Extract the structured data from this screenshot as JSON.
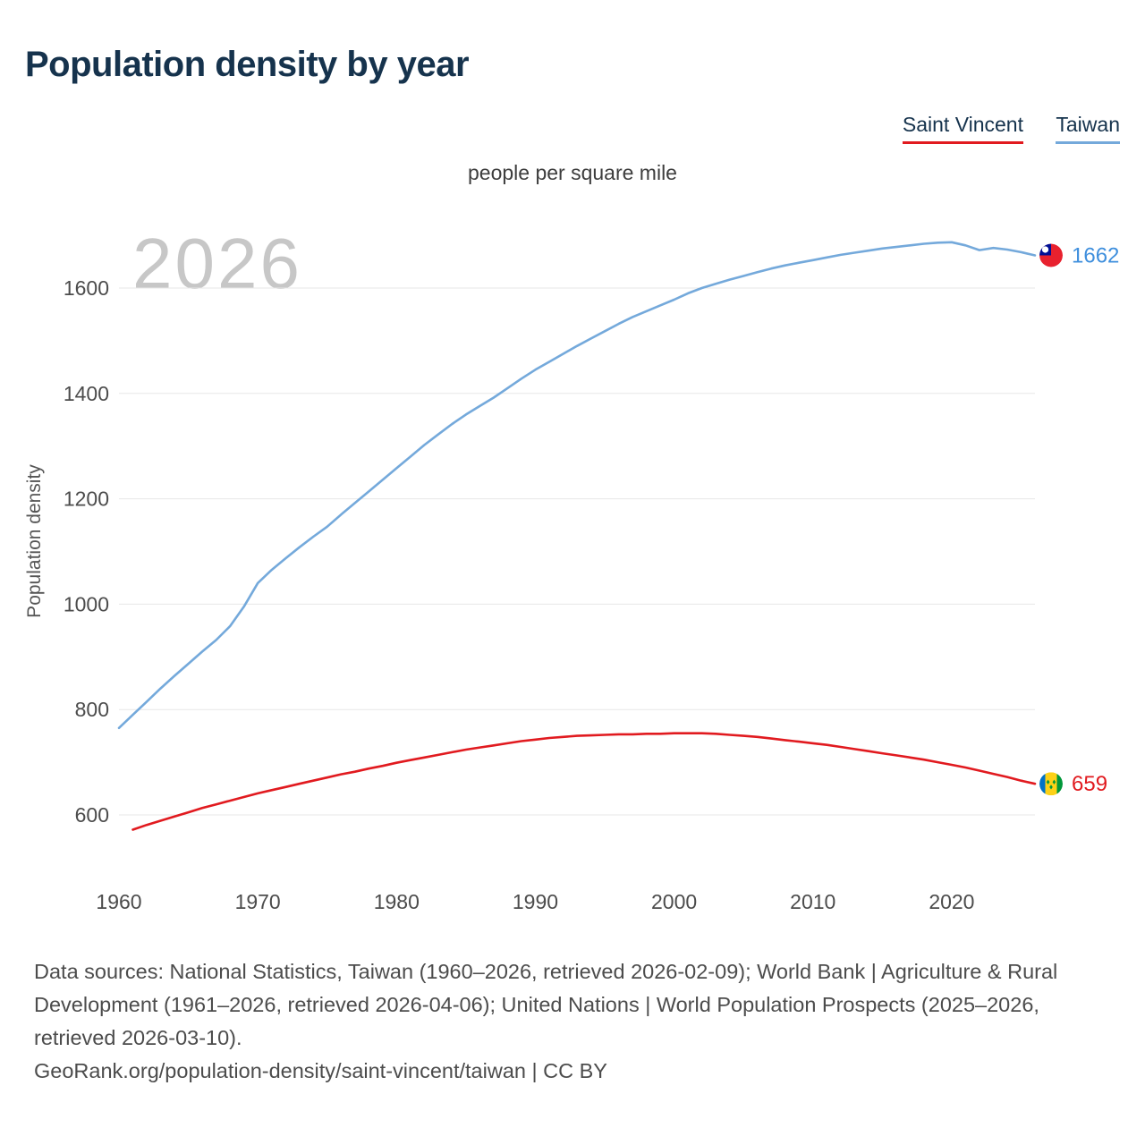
{
  "page": {
    "title": "Population density by year",
    "subtitle": "people per square mile",
    "legend": {
      "saint_vincent": "Saint Vincent",
      "taiwan": "Taiwan"
    },
    "footer": {
      "sources": "Data sources: National Statistics, Taiwan (1960–2026, retrieved 2026-02-09); World Bank | Agriculture & Rural Development (1961–2026, retrieved 2026-04-06); United Nations | World Population Prospects (2025–2026, retrieved 2026-03-10).",
      "link": "GeoRank.org/population-density/saint-vincent/taiwan | CC BY"
    }
  },
  "chart_data": {
    "type": "line",
    "title": "Population density by year",
    "unit_label": "people per square mile",
    "ylabel": "Population density",
    "watermark": "2026",
    "xticks": [
      1960,
      1970,
      1980,
      1990,
      2000,
      2010,
      2020
    ],
    "yticks": [
      600,
      800,
      1000,
      1200,
      1400,
      1600
    ],
    "xlim": [
      1960,
      2026
    ],
    "ylim": [
      520,
      1740
    ],
    "grid": "horizontal",
    "legend_position": "top-right",
    "series": [
      {
        "id": "saint-vincent",
        "name": "Saint Vincent",
        "color": "#e11a1f",
        "label_color": "#e11a1f",
        "flag": "saint-vincent",
        "start_year": 1961,
        "end_label": "659",
        "values": [
          572,
          581,
          589,
          597,
          605,
          613,
          620,
          627,
          634,
          641,
          647,
          653,
          659,
          665,
          671,
          677,
          682,
          688,
          693,
          699,
          704,
          709,
          714,
          719,
          724,
          728,
          732,
          736,
          740,
          743,
          746,
          748,
          750,
          751,
          752,
          753,
          753,
          754,
          754,
          755,
          755,
          755,
          754,
          752,
          750,
          748,
          745,
          742,
          739,
          736,
          733,
          729,
          725,
          721,
          717,
          713,
          709,
          705,
          700,
          695,
          690,
          684,
          678,
          672,
          665,
          659
        ]
      },
      {
        "id": "taiwan",
        "name": "Taiwan",
        "color": "#74a9db",
        "label_color": "#3f8fdd",
        "flag": "taiwan",
        "start_year": 1960,
        "end_label": "1662",
        "values": [
          765,
          790,
          815,
          840,
          864,
          887,
          910,
          932,
          958,
          995,
          1040,
          1065,
          1087,
          1108,
          1128,
          1147,
          1170,
          1192,
          1214,
          1236,
          1258,
          1280,
          1302,
          1322,
          1342,
          1360,
          1376,
          1392,
          1410,
          1428,
          1445,
          1460,
          1475,
          1490,
          1504,
          1518,
          1532,
          1545,
          1556,
          1567,
          1578,
          1590,
          1600,
          1608,
          1616,
          1623,
          1630,
          1637,
          1643,
          1648,
          1653,
          1658,
          1663,
          1667,
          1671,
          1675,
          1678,
          1681,
          1684,
          1686,
          1687,
          1681,
          1672,
          1676,
          1673,
          1668,
          1662
        ]
      }
    ]
  }
}
